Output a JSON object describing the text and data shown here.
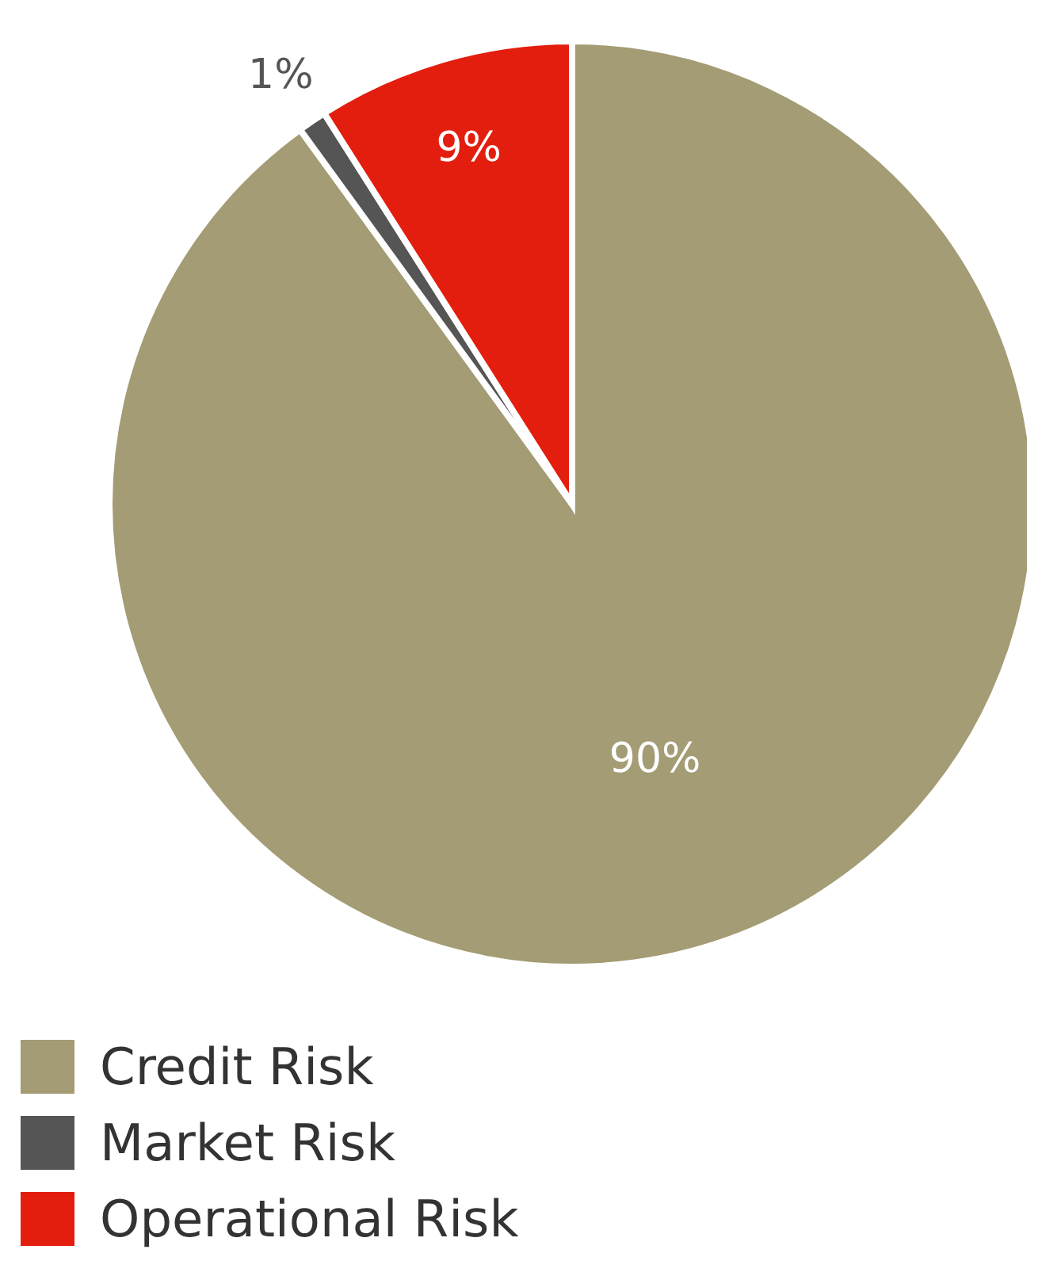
{
  "chart_data": {
    "type": "pie",
    "categories": [
      "Credit Risk",
      "Market Risk",
      "Operational Risk"
    ],
    "values": [
      90,
      1,
      9
    ],
    "colors": [
      "#a39c74",
      "#555555",
      "#e31e0e"
    ],
    "value_labels": [
      "90%",
      "1%",
      "9%"
    ],
    "legend": "bottom left"
  }
}
